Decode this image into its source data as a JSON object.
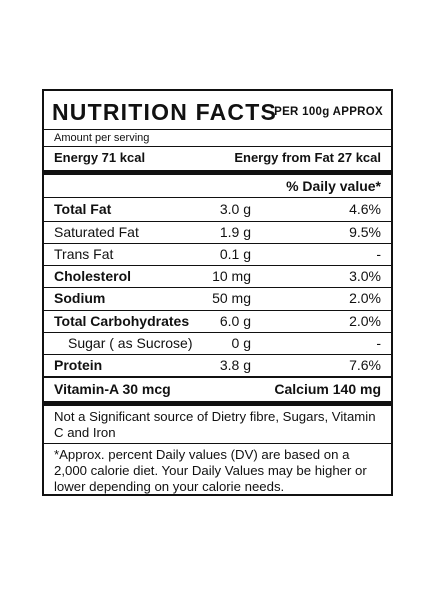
{
  "header": {
    "title": "NUTRITION FACTS",
    "serving_basis": "PER 100g APPROX"
  },
  "amount_label": "Amount per serving",
  "energy": {
    "left": "Energy 71 kcal",
    "right": "Energy from Fat 27 kcal"
  },
  "daily_value_header": "% Daily value*",
  "nutrients": [
    {
      "name": "Total Fat",
      "amount": "3.0 g",
      "dv": "4.6%"
    },
    {
      "name": "Saturated Fat",
      "amount": "1.9 g",
      "dv": "9.5%"
    },
    {
      "name": "Trans Fat",
      "amount": "0.1 g",
      "dv": "-"
    },
    {
      "name": "Cholesterol",
      "amount": "10 mg",
      "dv": "3.0%"
    },
    {
      "name": "Sodium",
      "amount": "50 mg",
      "dv": "2.0%"
    },
    {
      "name": "Total Carbohydrates",
      "amount": "6.0 g",
      "dv": "2.0%"
    },
    {
      "name": "Sugar ( as Sucrose)",
      "amount": "0 g",
      "dv": "-"
    },
    {
      "name": "Protein",
      "amount": "3.8 g",
      "dv": "7.6%"
    }
  ],
  "vitamins": {
    "left": "Vitamin-A 30 mcg",
    "right": "Calcium 140 mg"
  },
  "notes": {
    "significance": "Not a Significant source of Dietry fibre, Sugars, Vitamin C and Iron",
    "disclaimer": "*Approx. percent Daily values (DV) are based on a 2,000 calorie diet. Your Daily Values may be higher or lower depending on your calorie needs."
  }
}
